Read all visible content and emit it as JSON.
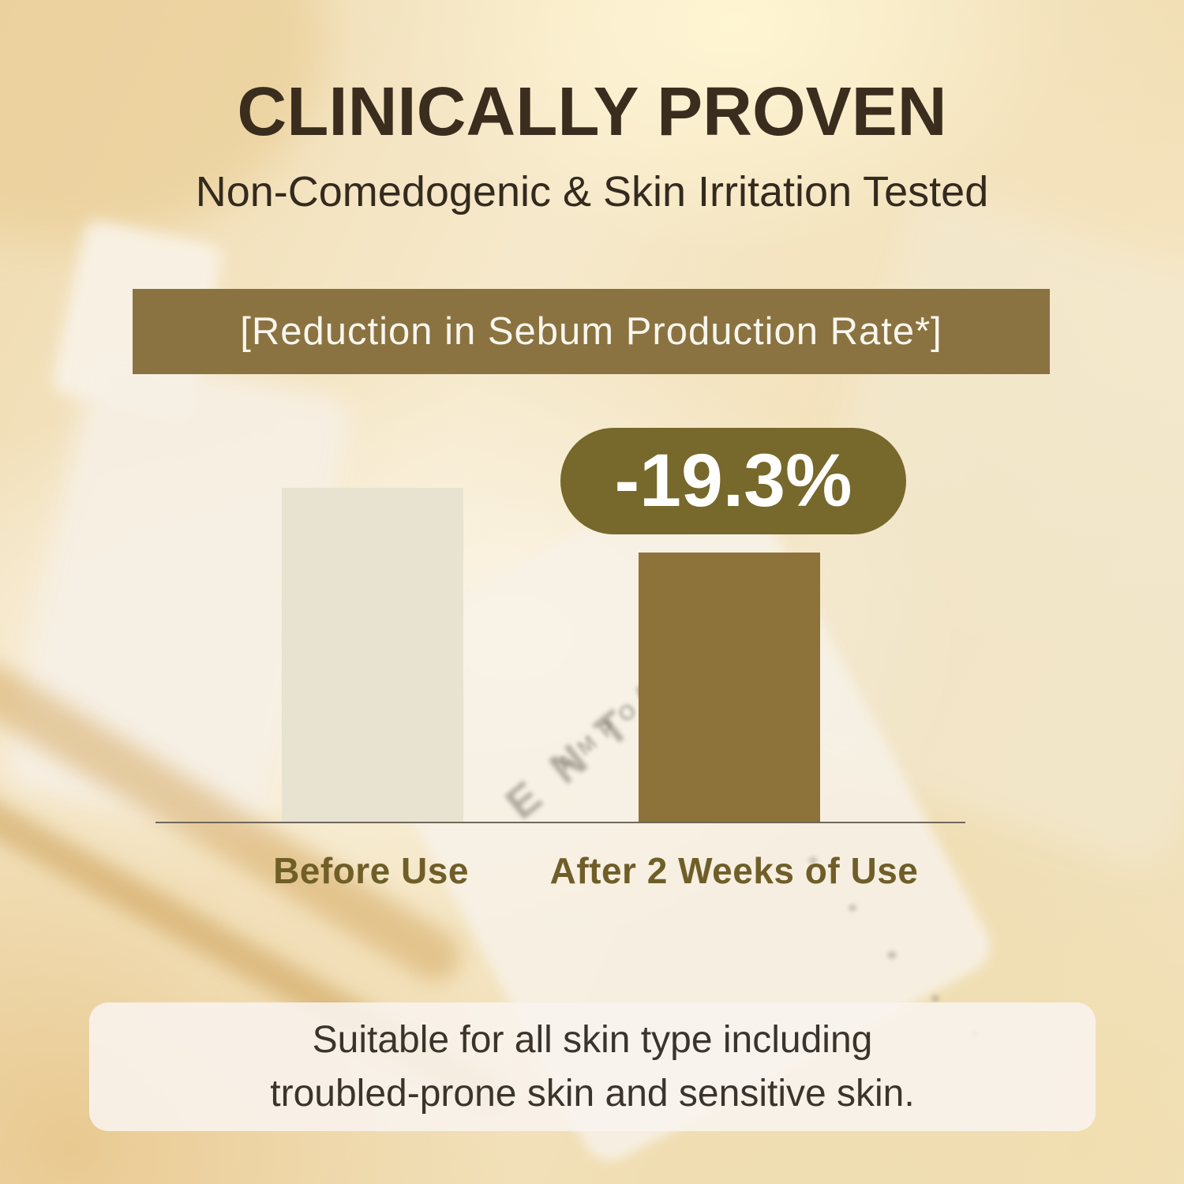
{
  "header": {
    "title": "CLINICALLY PROVEN",
    "subtitle": "Non-Comedogenic & Skin Irritation Tested"
  },
  "banner": {
    "label": "[Reduction in Sebum Production Rate*]"
  },
  "chart_data": {
    "type": "bar",
    "title": "[Reduction in Sebum Production Rate*]",
    "categories": [
      "Before Use",
      "After 2 Weeks of Use"
    ],
    "values": [
      100,
      80.7
    ],
    "value_note": "relative sebum production rate; bar after 2 weeks is 19.3% lower than before use",
    "annotation": {
      "label": "-19.3%",
      "applies_to": "After 2 Weeks of Use"
    },
    "bar_colors": [
      "#e8e2d1",
      "#8d7239"
    ],
    "xlabel": "",
    "ylabel": "",
    "ylim": [
      0,
      100
    ],
    "grid": false,
    "legend": "none",
    "axis_style": "baseline only"
  },
  "footnote": {
    "line1": "Suitable for all skin type including",
    "line2": "troubled-prone skin and sensitive skin."
  },
  "background": {
    "blurred_label_text": "ENTELLA",
    "blurred_label_subtext": "AMPOU"
  },
  "colors": {
    "title-text": "#3b2d1e",
    "subtitle-text": "#342a1e",
    "banner-bg": "#8a7340",
    "banner-text": "#f9f6ee",
    "badge-bg": "#77682b",
    "badge-text": "#ffffff",
    "bar-before": "#e8e2d1",
    "bar-after": "#8d7239",
    "axis-line": "#6f685c",
    "bar-label-text": "#6f5e28",
    "footnote-text": "#3a342d"
  }
}
